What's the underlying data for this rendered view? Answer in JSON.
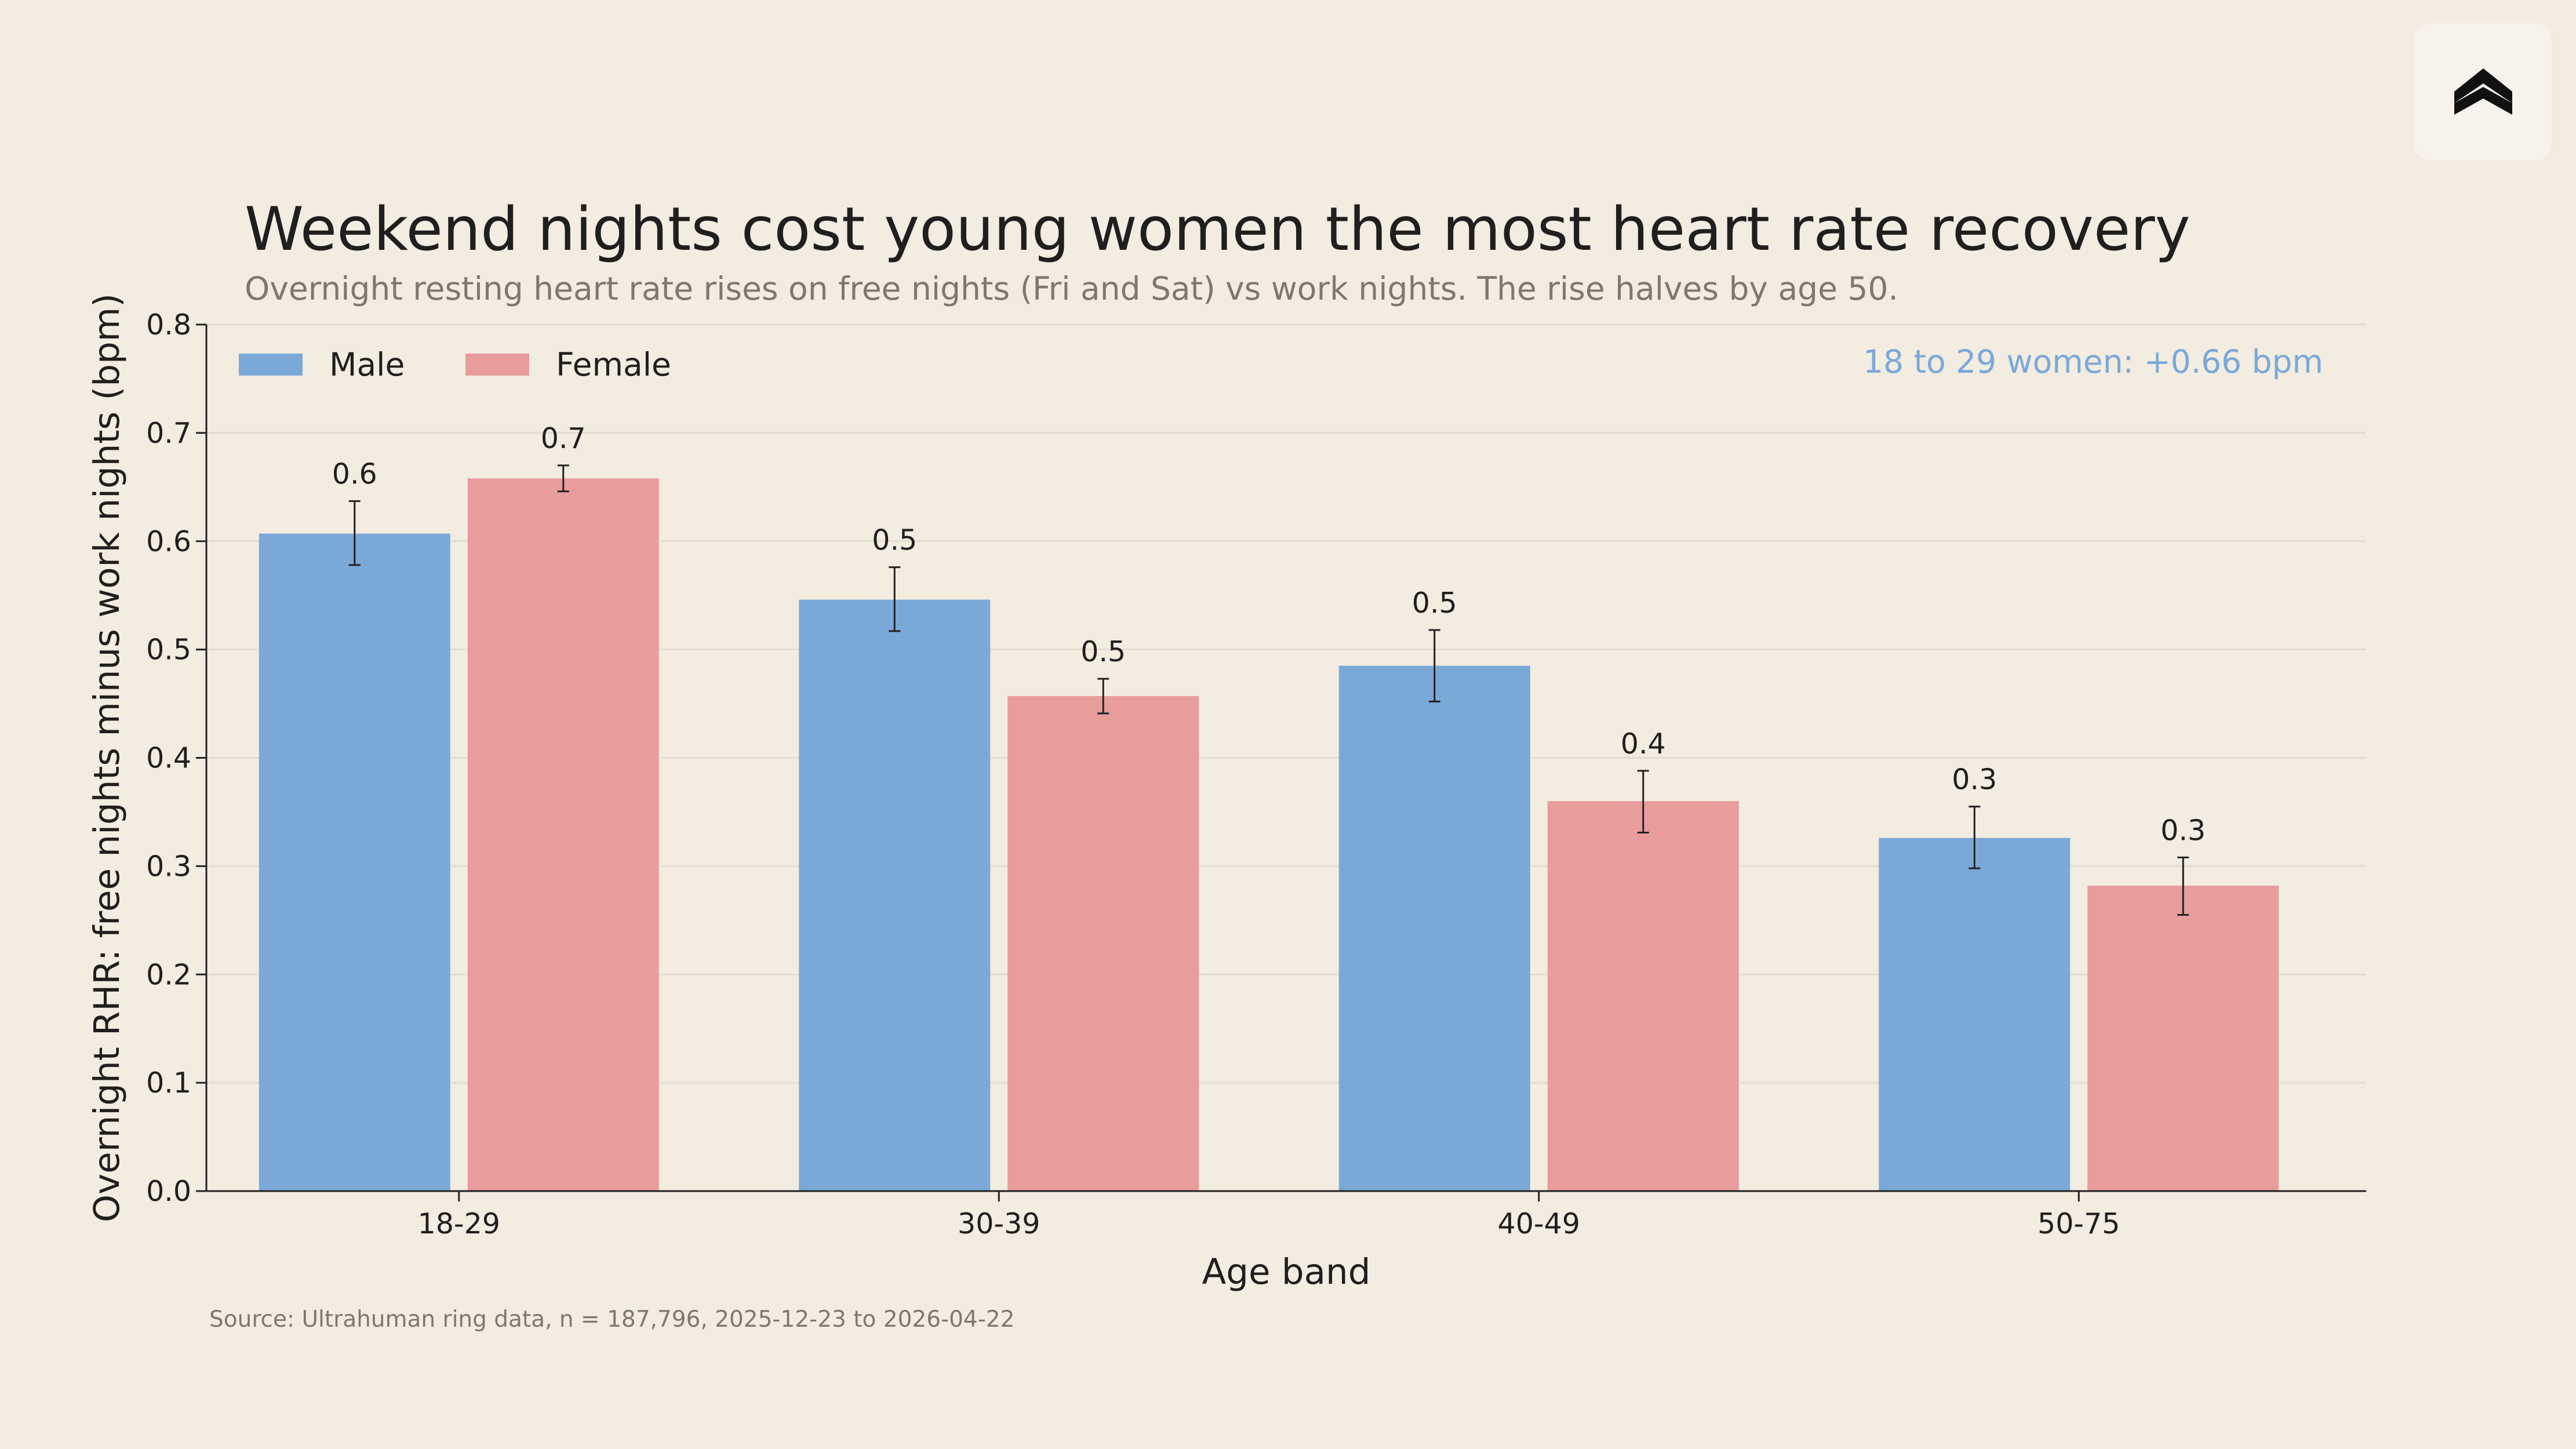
{
  "colors": {
    "background": "#f2ece1",
    "male": "#7aa9d8",
    "female": "#e89c9c",
    "annotation": "#7aa9d8"
  },
  "logo": {
    "icon": "brand-logo-icon"
  },
  "chart_data": {
    "type": "bar",
    "title": "Weekend nights cost young women the most heart rate recovery",
    "subtitle": "Overnight resting heart rate rises on free nights (Fri and Sat) vs work nights. The rise halves by age 50.",
    "xlabel": "Age band",
    "ylabel": "Overnight RHR: free nights minus work nights (bpm)",
    "categories": [
      "18-29",
      "30-39",
      "40-49",
      "50-75"
    ],
    "ylim": [
      0,
      0.8
    ],
    "yticks": [
      "0.0",
      "0.1",
      "0.2",
      "0.3",
      "0.4",
      "0.5",
      "0.6",
      "0.7",
      "0.8"
    ],
    "grid": "horizontal",
    "legend_position": "top-left",
    "series": [
      {
        "name": "Male",
        "color": "#7aa9d8",
        "values": [
          0.607,
          0.546,
          0.485,
          0.326
        ],
        "error": [
          [
            0.578,
            0.637
          ],
          [
            0.517,
            0.576
          ],
          [
            0.452,
            0.518
          ],
          [
            0.298,
            0.355
          ]
        ],
        "labels": [
          "0.6",
          "0.5",
          "0.5",
          "0.3"
        ]
      },
      {
        "name": "Female",
        "color": "#e89c9c",
        "values": [
          0.658,
          0.457,
          0.36,
          0.282
        ],
        "error": [
          [
            0.646,
            0.67
          ],
          [
            0.441,
            0.473
          ],
          [
            0.331,
            0.388
          ],
          [
            0.255,
            0.308
          ]
        ],
        "labels": [
          "0.7",
          "0.5",
          "0.4",
          "0.3"
        ]
      }
    ],
    "annotation": "18 to 29 women: +0.66 bpm",
    "source": "Source: Ultrahuman ring data, n = 187,796, 2025-12-23 to 2026-04-22"
  }
}
